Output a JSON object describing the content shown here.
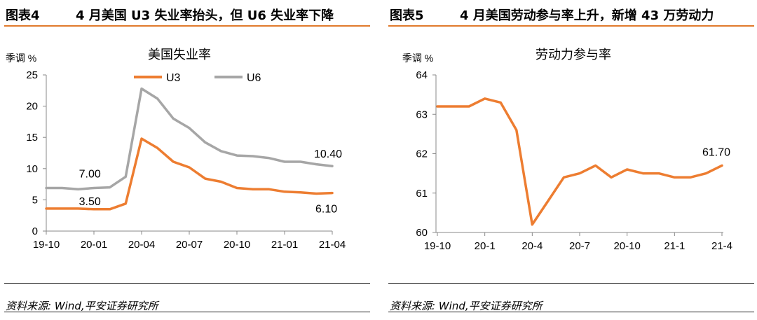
{
  "figures": [
    {
      "number": "图表4",
      "title": "4 月美国 U3 失业率抬头，但 U6 失业率下降",
      "source": "资料来源: Wind,平安证券研究所"
    },
    {
      "number": "图表5",
      "title": "4 月美国劳动参与率上升，新增 43 万劳动力",
      "source": "资料来源: Wind,平安证券研究所"
    }
  ],
  "chart_data": [
    {
      "type": "line",
      "title": "美国失业率",
      "ylabel": "季调 %",
      "ylim": [
        0,
        25
      ],
      "yticks": [
        "0",
        "5",
        "10",
        "15",
        "20",
        "25"
      ],
      "x": [
        "19-10",
        "19-11",
        "19-12",
        "20-01",
        "20-02",
        "20-03",
        "20-04",
        "20-05",
        "20-06",
        "20-07",
        "20-08",
        "20-09",
        "20-10",
        "20-11",
        "20-12",
        "21-01",
        "21-02",
        "21-03",
        "21-04"
      ],
      "xtick_labels": [
        "19-10",
        "20-01",
        "20-04",
        "20-07",
        "20-10",
        "21-01",
        "21-04"
      ],
      "legend_position": "top-center",
      "grid": false,
      "series": [
        {
          "name": "U3",
          "color": "#ed7d31",
          "values": [
            3.6,
            3.6,
            3.6,
            3.5,
            3.5,
            4.4,
            14.8,
            13.3,
            11.1,
            10.2,
            8.4,
            7.9,
            6.9,
            6.7,
            6.7,
            6.3,
            6.2,
            6.0,
            6.1
          ]
        },
        {
          "name": "U6",
          "color": "#a6a6a6",
          "values": [
            6.9,
            6.9,
            6.7,
            6.9,
            7.0,
            8.7,
            22.8,
            21.2,
            18.0,
            16.5,
            14.2,
            12.8,
            12.1,
            12.0,
            11.7,
            11.1,
            11.1,
            10.7,
            10.4
          ]
        }
      ],
      "annotations": [
        {
          "text": "7.00",
          "x": "20-02",
          "y": 7.0
        },
        {
          "text": "3.50",
          "x": "20-02",
          "y": 3.5
        },
        {
          "text": "10.40",
          "x": "21-04",
          "y": 10.4
        },
        {
          "text": "6.10",
          "x": "21-04",
          "y": 6.1
        }
      ]
    },
    {
      "type": "line",
      "title": "劳动力参与率",
      "ylabel": "季调 %",
      "ylim": [
        60,
        64
      ],
      "yticks": [
        "60",
        "61",
        "62",
        "63",
        "64"
      ],
      "x": [
        "19-10",
        "19-11",
        "19-12",
        "20-01",
        "20-02",
        "20-03",
        "20-04",
        "20-05",
        "20-06",
        "20-07",
        "20-08",
        "20-09",
        "20-10",
        "20-11",
        "20-12",
        "21-01",
        "21-02",
        "21-03",
        "21-04"
      ],
      "xtick_labels": [
        "19-10",
        "20-1",
        "20-4",
        "20-7",
        "20-10",
        "21-1",
        "21-4"
      ],
      "grid": false,
      "series": [
        {
          "color": "#ed7d31",
          "values": [
            63.2,
            63.2,
            63.2,
            63.4,
            63.3,
            62.6,
            60.2,
            60.8,
            61.4,
            61.5,
            61.7,
            61.4,
            61.6,
            61.5,
            61.5,
            61.4,
            61.4,
            61.5,
            61.7
          ]
        }
      ],
      "annotations": [
        {
          "text": "61.70",
          "x": "21-04",
          "y": 61.7
        }
      ]
    }
  ]
}
